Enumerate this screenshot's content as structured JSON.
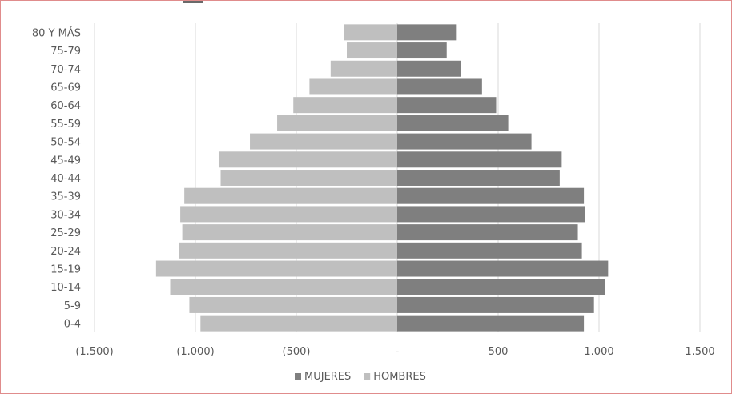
{
  "chart_data": {
    "type": "bar",
    "orientation": "horizontal",
    "categories": [
      "0-4",
      "5-9",
      "10-14",
      "15-19",
      "20-24",
      "25-29",
      "30-34",
      "35-39",
      "40-44",
      "45-49",
      "50-54",
      "55-59",
      "60-64",
      "65-69",
      "70-74",
      "75-79",
      "80 Y MÁS"
    ],
    "series": [
      {
        "name": "MUJERES",
        "color": "#7f7f7f",
        "values": [
          925,
          975,
          1030,
          1045,
          915,
          895,
          930,
          925,
          805,
          815,
          665,
          550,
          490,
          420,
          315,
          245,
          295
        ]
      },
      {
        "name": "HOMBRES",
        "color": "#bfbfbf",
        "values": [
          -975,
          -1030,
          -1125,
          -1195,
          -1080,
          -1065,
          -1075,
          -1055,
          -875,
          -885,
          -730,
          -595,
          -515,
          -435,
          -330,
          -250,
          -265
        ]
      }
    ],
    "xlim": [
      -1500,
      1500
    ],
    "xticks": [
      -1500,
      -1000,
      -500,
      0,
      500,
      1000,
      1500
    ],
    "xtick_labels": [
      "(1.500)",
      "(1.000)",
      "(500)",
      "-",
      "500",
      "1.000",
      "1.500"
    ],
    "grid": "vertical",
    "legend_position": "bottom"
  }
}
